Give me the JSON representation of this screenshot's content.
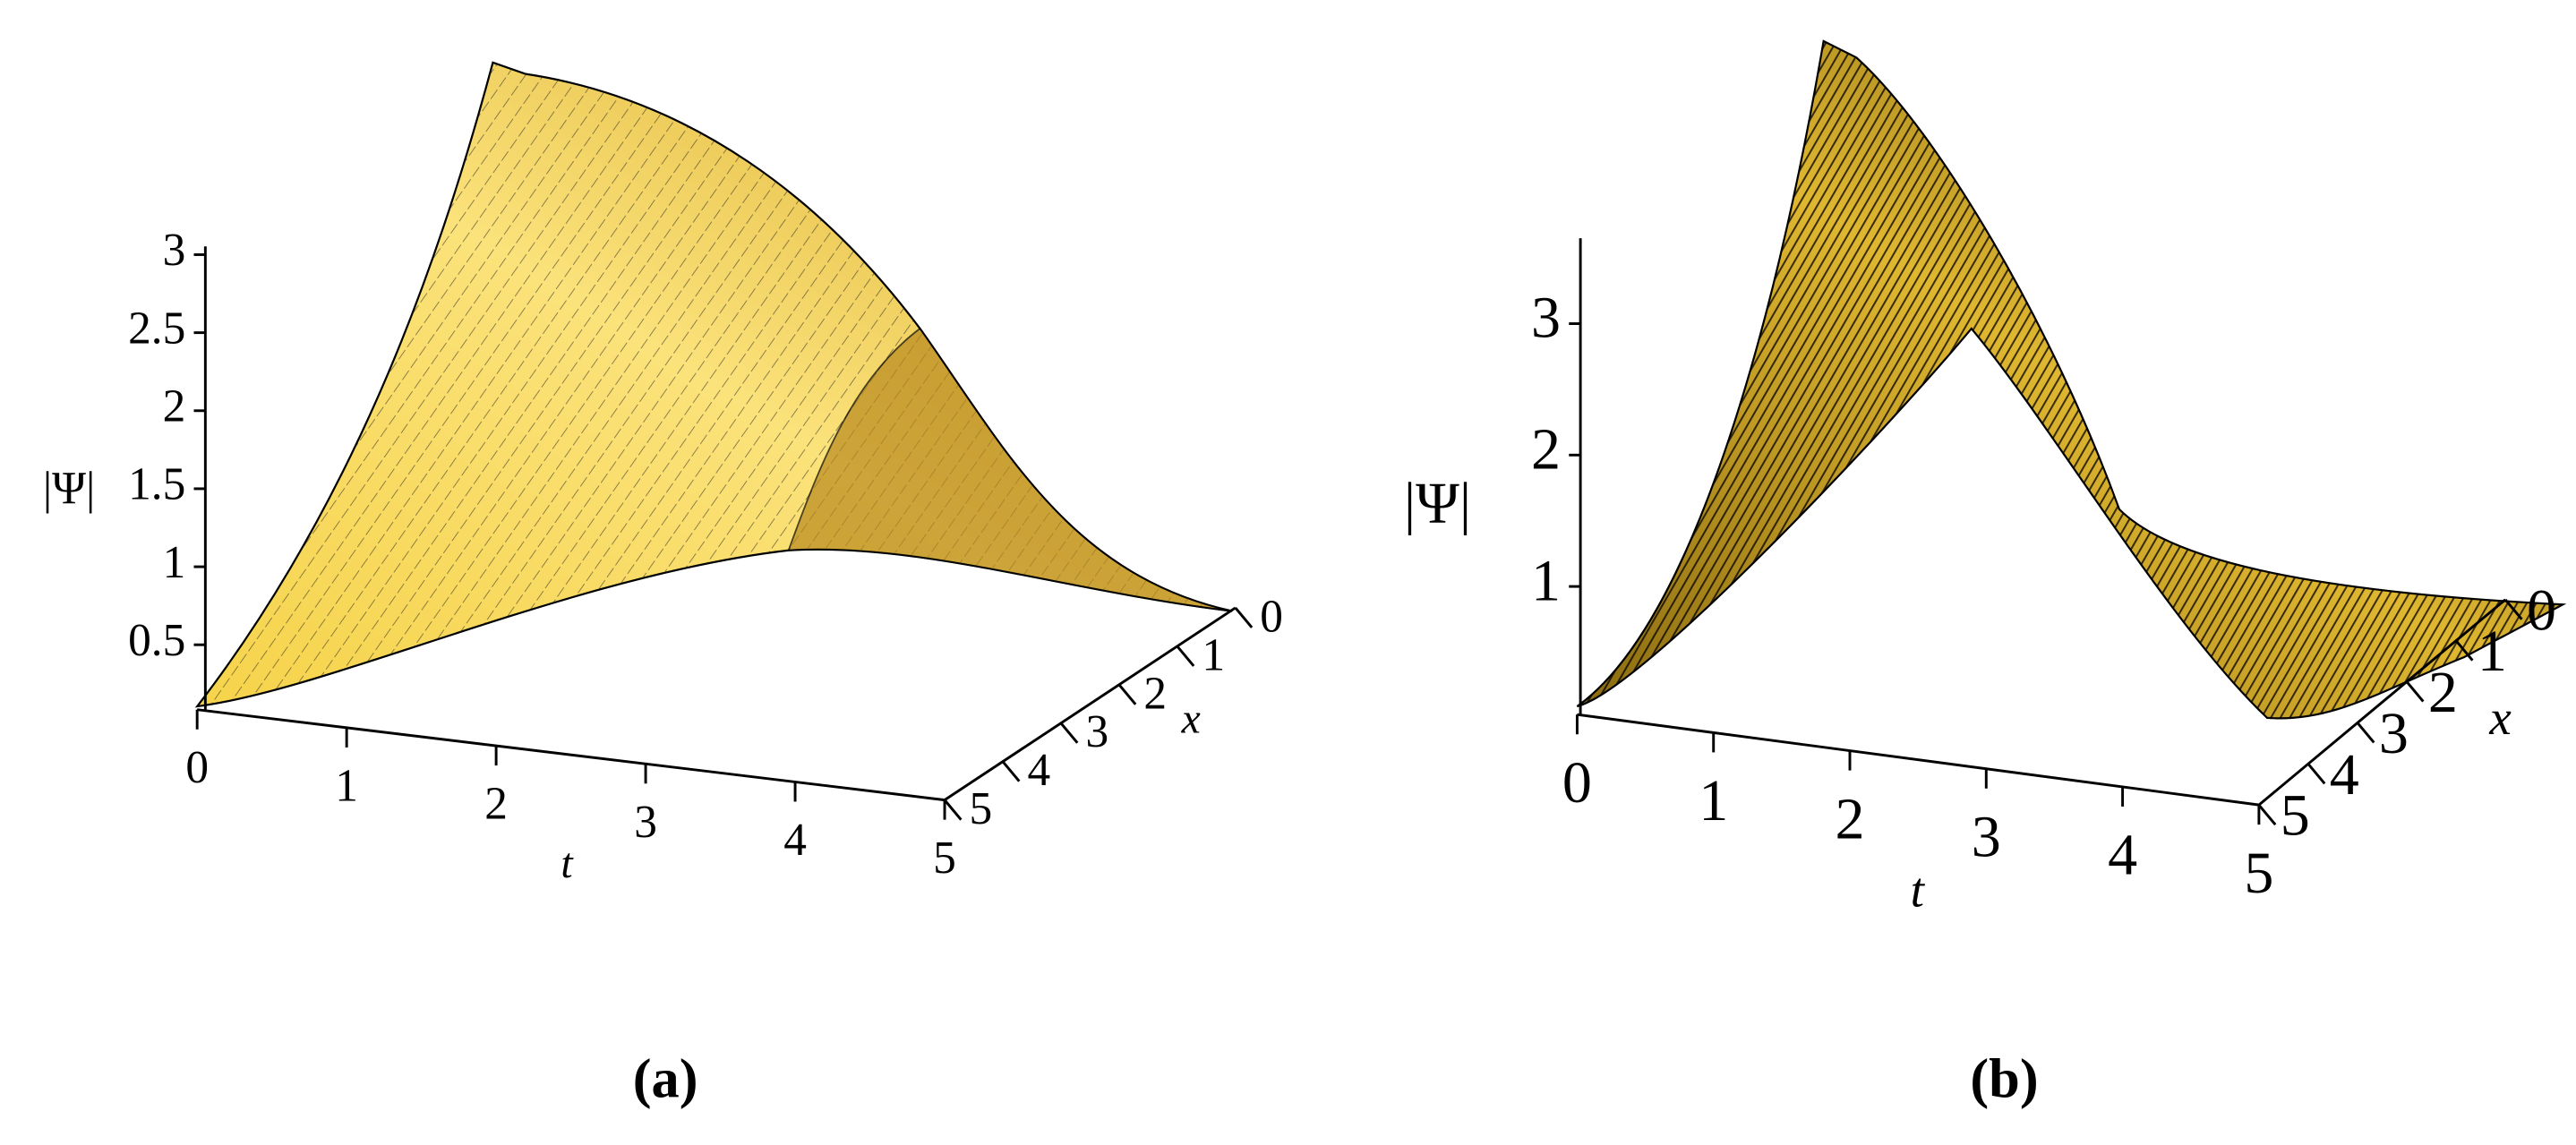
{
  "chart_data": [
    {
      "type": "surface",
      "caption": "(a)",
      "zlabel": "|Ψ|",
      "tlabel": "t",
      "xlabel": "x",
      "zlim": [
        0,
        3
      ],
      "zticks": [
        0.5,
        1,
        1.5,
        2,
        2.5,
        3
      ],
      "tlim": [
        0,
        5
      ],
      "tticks": [
        0,
        1,
        2,
        3,
        4,
        5
      ],
      "xlim": [
        0,
        5
      ],
      "xticks": [
        0,
        1,
        2,
        3,
        4,
        5
      ]
    },
    {
      "type": "surface",
      "caption": "(b)",
      "zlabel": "|Ψ|",
      "tlabel": "t",
      "xlabel": "x",
      "zlim": [
        0,
        3.5
      ],
      "zticks": [
        1,
        2,
        3
      ],
      "tlim": [
        0,
        5
      ],
      "tticks": [
        0,
        1,
        2,
        3,
        4,
        5
      ],
      "xlim": [
        0,
        5
      ],
      "xticks": [
        0,
        1,
        2,
        3,
        4,
        5
      ]
    }
  ]
}
